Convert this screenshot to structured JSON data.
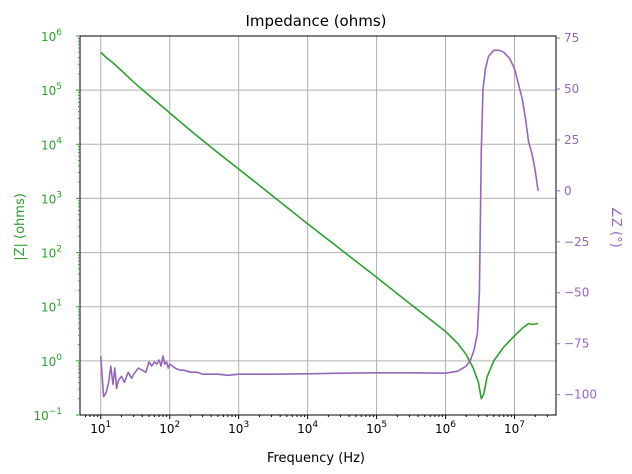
{
  "chart_data": {
    "type": "line",
    "title": "Impedance (ohms)",
    "xlabel": "Frequency (Hz)",
    "ylabel_left": "|Z| (ohms)",
    "ylabel_right": "∠Z (°)",
    "x_scale": "log",
    "y_left_scale": "log",
    "xlim": [
      5,
      40000000
    ],
    "ylim_left": [
      0.1,
      1000000
    ],
    "ylim_right": [
      -110,
      76
    ],
    "grid": true,
    "colors": {
      "magnitude": "#2ca02c",
      "phase": "#9467bd"
    },
    "x_tick_labels": [
      {
        "base": "10",
        "exp": "1",
        "value": 10
      },
      {
        "base": "10",
        "exp": "2",
        "value": 100
      },
      {
        "base": "10",
        "exp": "3",
        "value": 1000
      },
      {
        "base": "10",
        "exp": "4",
        "value": 10000
      },
      {
        "base": "10",
        "exp": "5",
        "value": 100000
      },
      {
        "base": "10",
        "exp": "6",
        "value": 1000000
      },
      {
        "base": "10",
        "exp": "7",
        "value": 10000000
      }
    ],
    "y_left_tick_labels": [
      {
        "base": "10",
        "exp": "−1",
        "value": 0.1
      },
      {
        "base": "10",
        "exp": "0",
        "value": 1
      },
      {
        "base": "10",
        "exp": "1",
        "value": 10
      },
      {
        "base": "10",
        "exp": "2",
        "value": 100
      },
      {
        "base": "10",
        "exp": "3",
        "value": 1000
      },
      {
        "base": "10",
        "exp": "4",
        "value": 10000
      },
      {
        "base": "10",
        "exp": "5",
        "value": 100000
      },
      {
        "base": "10",
        "exp": "6",
        "value": 1000000
      }
    ],
    "y_right_tick_labels": [
      {
        "label": "75",
        "value": 75
      },
      {
        "label": "50",
        "value": 50
      },
      {
        "label": "25",
        "value": 25
      },
      {
        "label": "0",
        "value": 0
      },
      {
        "label": "−25",
        "value": -25
      },
      {
        "label": "−50",
        "value": -50
      },
      {
        "label": "−75",
        "value": -75
      },
      {
        "label": "−100",
        "value": -100
      }
    ],
    "series": [
      {
        "axis": "left",
        "x": [
          10,
          12,
          15,
          20,
          30,
          50,
          100,
          200,
          500,
          1000,
          3000,
          10000,
          30000,
          100000,
          300000,
          1000000,
          1500000,
          2000000,
          2500000,
          3000000,
          3300000,
          3600000,
          4000000,
          5000000,
          7000000,
          10000000,
          13000000,
          16000000,
          18000000,
          20000000,
          22000000
        ],
        "y": [
          500000,
          400000,
          320000,
          230000,
          140000,
          80000,
          38000,
          18000,
          7000,
          3500,
          1150,
          340,
          115,
          35,
          11.5,
          3.5,
          2.1,
          1.3,
          0.75,
          0.4,
          0.2,
          0.25,
          0.5,
          1.0,
          1.8,
          2.9,
          4.0,
          4.9,
          4.7,
          4.8,
          4.9
        ]
      },
      {
        "axis": "right",
        "x": [
          10,
          11,
          12,
          13,
          14,
          15,
          16,
          17,
          18,
          20,
          22,
          25,
          28,
          30,
          35,
          40,
          45,
          50,
          55,
          60,
          65,
          70,
          75,
          80,
          85,
          90,
          95,
          100,
          110,
          120,
          140,
          160,
          200,
          250,
          300,
          400,
          500,
          700,
          1000,
          3000,
          10000,
          30000,
          100000,
          300000,
          1000000,
          1500000,
          2000000,
          2300000,
          2600000,
          2900000,
          3100000,
          3300000,
          3500000,
          3800000,
          4200000,
          5000000,
          6000000,
          7000000,
          8500000,
          10000000,
          11500000,
          13000000,
          14500000,
          16000000,
          18000000,
          20000000,
          22000000
        ],
        "y": [
          -81,
          -101,
          -99,
          -94,
          -86,
          -95,
          -87,
          -97,
          -93,
          -91,
          -94,
          -89,
          -92,
          -90,
          -87,
          -88,
          -89,
          -84,
          -86,
          -84,
          -85,
          -83,
          -86,
          -81,
          -85,
          -84,
          -87,
          -85,
          -86,
          -87,
          -88,
          -88,
          -89,
          -89,
          -90,
          -90,
          -90,
          -90.5,
          -90,
          -90,
          -89.8,
          -89.5,
          -89.3,
          -89.3,
          -89.5,
          -88.5,
          -86,
          -83,
          -78,
          -70,
          -50,
          20,
          50,
          60,
          66,
          69,
          69,
          68,
          65,
          60,
          52,
          45,
          35,
          24,
          18,
          10,
          0
        ]
      }
    ]
  }
}
